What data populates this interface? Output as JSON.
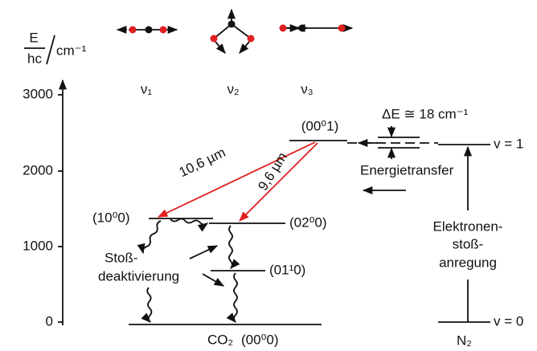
{
  "axis": {
    "label_numerator": "E",
    "label_denominator": "hc",
    "label_unit": "cm⁻¹",
    "ticks": [
      "0",
      "1000",
      "2000",
      "3000"
    ]
  },
  "modes": [
    "ν₁",
    "ν₂",
    "ν₃"
  ],
  "levels": {
    "co2_001": "(00⁰1)",
    "co2_100": "(10⁰0)",
    "co2_020": "(02⁰0)",
    "co2_010": "(01¹0)",
    "co2_ground": "(00⁰0)",
    "co2_name": "CO₂",
    "n2_v1": "v = 1",
    "n2_v0": "v = 0",
    "n2_name": "N₂"
  },
  "transitions": {
    "laser_1": "10,6 µm",
    "laser_2": "9,6 µm",
    "delta_e": "ΔE ≅ 18 cm⁻¹",
    "energy_transfer": "Energietransfer",
    "excitation": [
      "Elektronen-",
      "stoß-",
      "anregung"
    ],
    "deactivation": [
      "Stoß-",
      "deaktivierung"
    ]
  }
}
